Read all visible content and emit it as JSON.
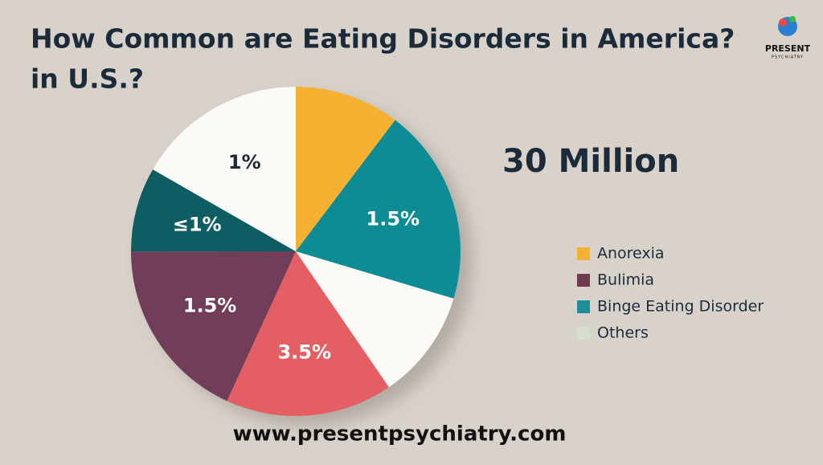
{
  "chart_data": {
    "type": "pie",
    "title": "How Common are Eating Disorders in America?",
    "subtitle": "in U.S.?",
    "headline": "30 Million",
    "slices": {
      "values": [
        10.3,
        19.3,
        10.8,
        16.4,
        18.1,
        8.3,
        16.7
      ],
      "colors": [
        "#f5b133",
        "#0d8c96",
        "#fbfaf6",
        "#e35e63",
        "#713e58",
        "#0f5d63",
        "#fbfaf6"
      ],
      "labels": [
        null,
        "1.5%",
        null,
        "3.5%",
        "1.5%",
        "≤1%",
        "1%"
      ]
    },
    "legend": [
      {
        "name": "Anorexia",
        "color": "#f5b133"
      },
      {
        "name": "Bulimia",
        "color": "#703a55"
      },
      {
        "name": "Binge Eating Disorder",
        "color": "#1b8e9a"
      },
      {
        "name": "Others",
        "color": "#d5dfcb"
      }
    ]
  },
  "logo": {
    "name": "PRESENT",
    "tagline": "PSYCHIATRY"
  },
  "footer": "www.presentpsychiatry.com"
}
